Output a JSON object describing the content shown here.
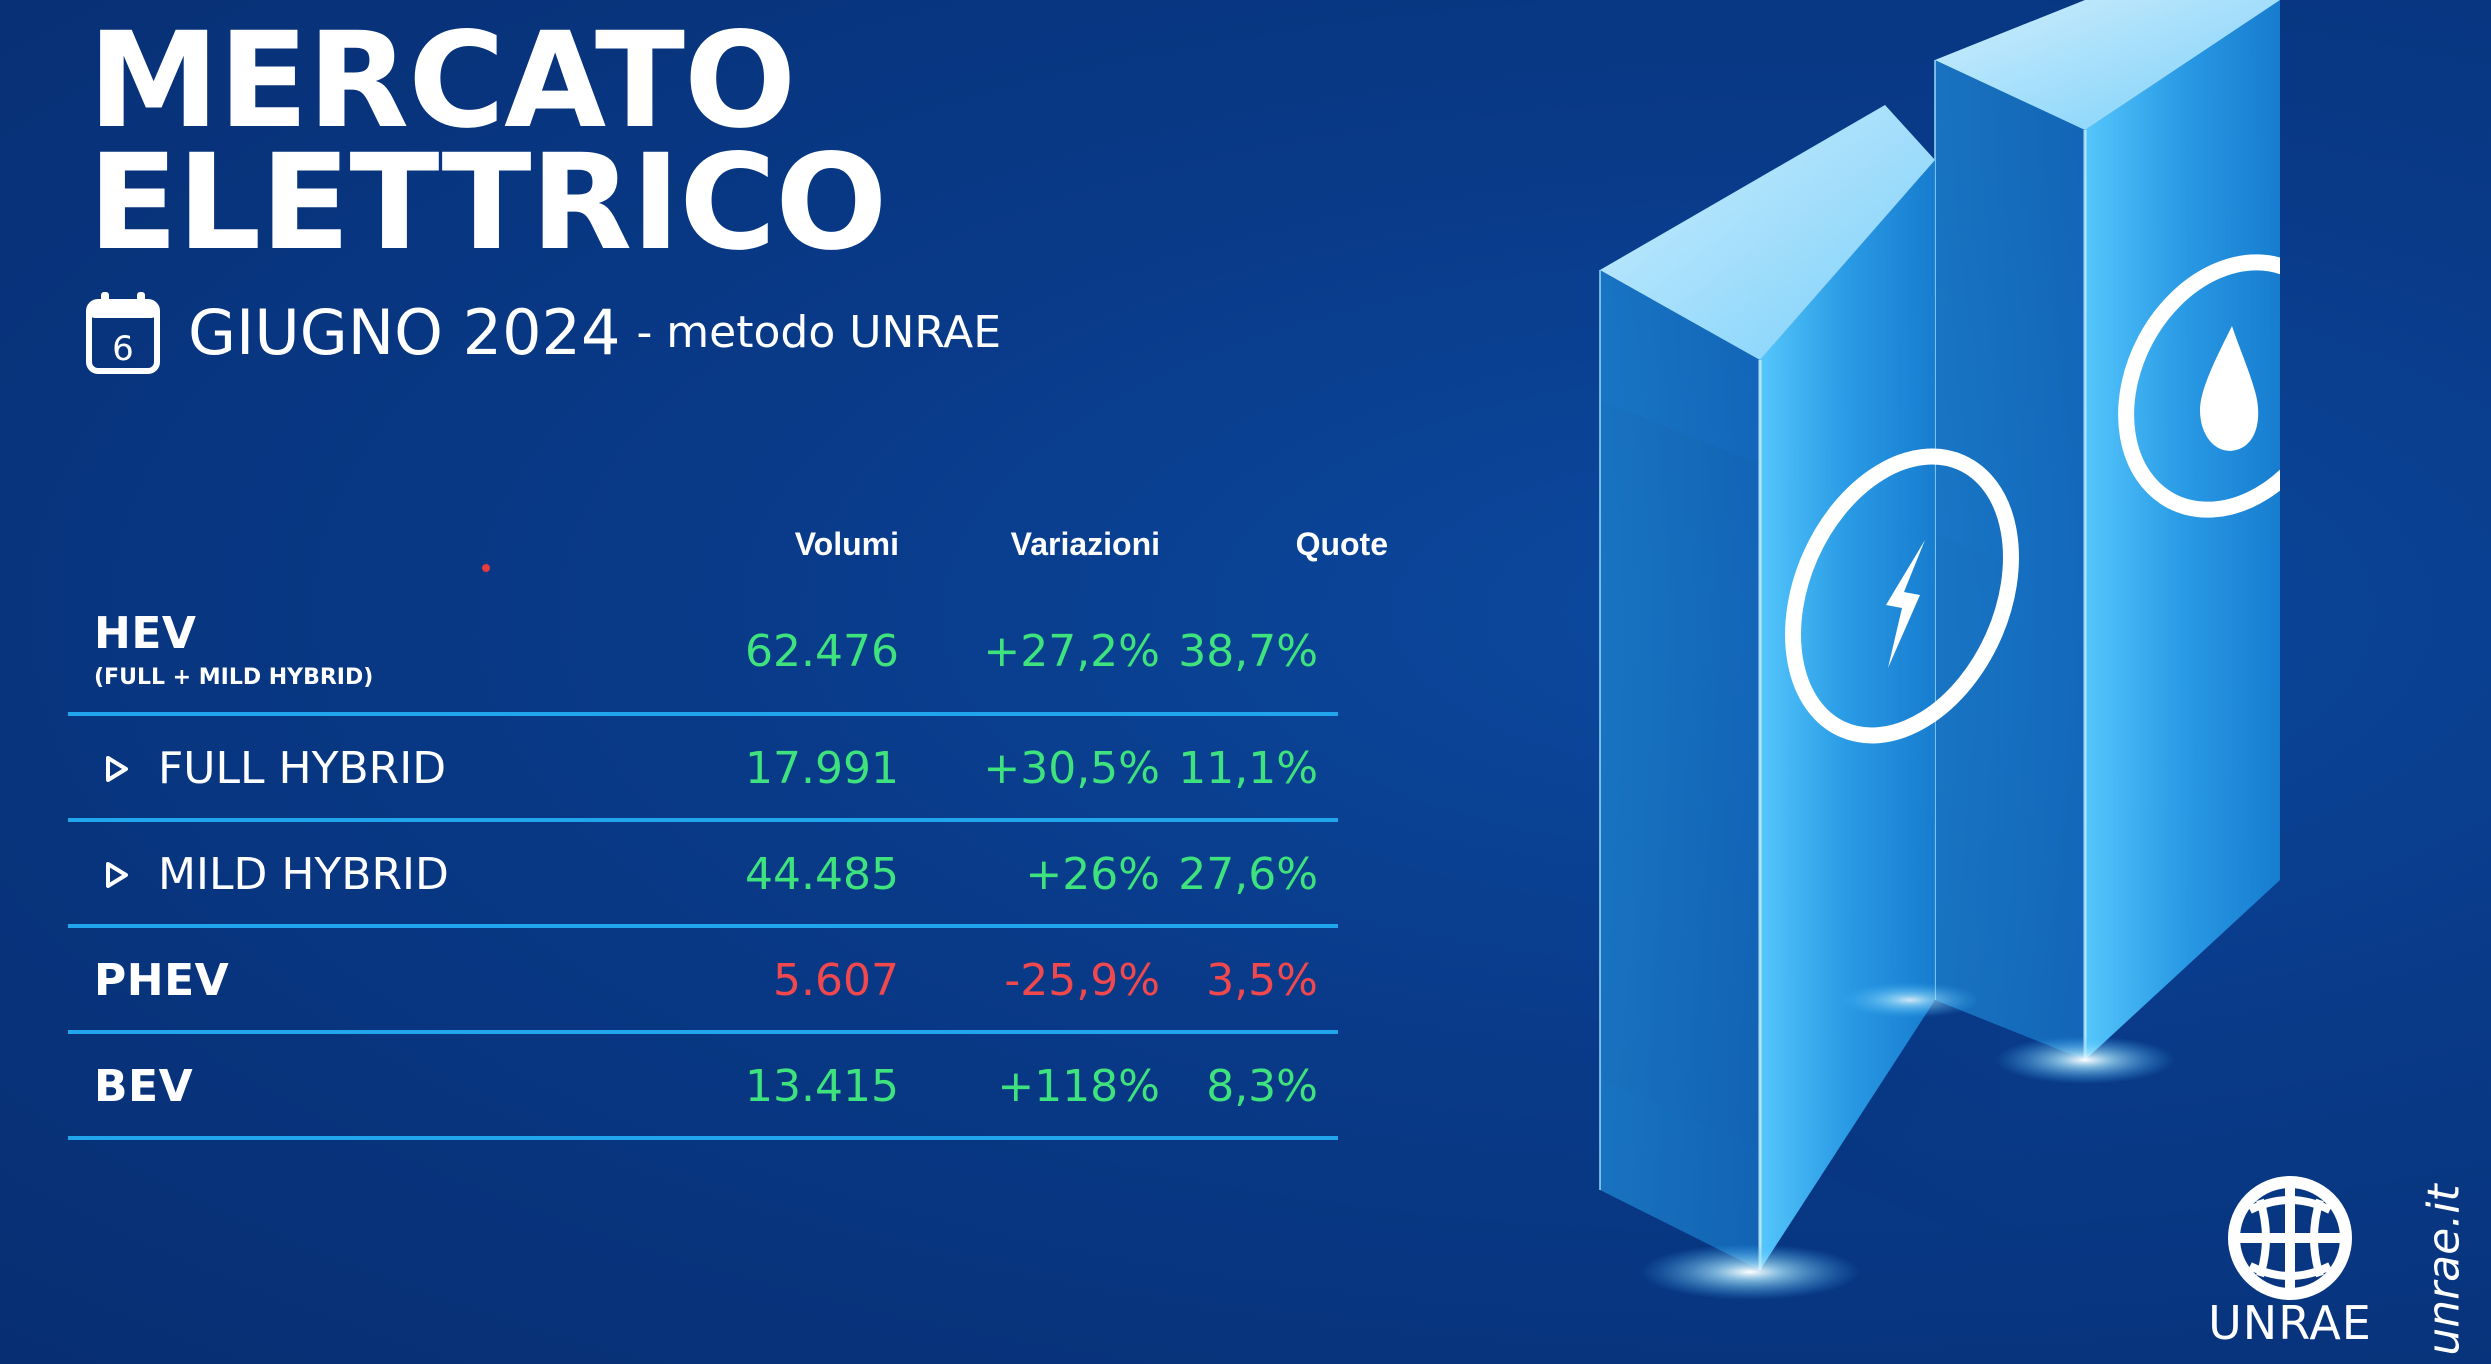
{
  "title": {
    "line1": "MERCATO",
    "line2": "ELETTRICO"
  },
  "subtitle": {
    "calendar_day": "6",
    "date": "GIUGNO 2024",
    "method": "- metodo UNRAE"
  },
  "table": {
    "headers": {
      "volumes": "Volumi",
      "variations": "Variazioni",
      "shares": "Quote"
    },
    "rows": [
      {
        "label": "HEV",
        "sublabel": "(FULL + MILD HYBRID)",
        "volume": "62.476",
        "variation": "+27,2%",
        "share": "38,7%",
        "status": "positive"
      },
      {
        "label": "FULL HYBRID",
        "volume": "17.991",
        "variation": "+30,5%",
        "share": "11,1%",
        "status": "positive",
        "indented": true
      },
      {
        "label": "MILD HYBRID",
        "volume": "44.485",
        "variation": "+26%",
        "share": "27,6%",
        "status": "positive",
        "indented": true
      },
      {
        "label": "PHEV",
        "volume": "5.607",
        "variation": "-25,9%",
        "share": "3,5%",
        "status": "negative"
      },
      {
        "label": "BEV",
        "volume": "13.415",
        "variation": "+118%",
        "share": "8,3%",
        "status": "positive"
      }
    ]
  },
  "illustration": {
    "left_column_icon": "lightning-bolt-icon",
    "right_column_icon": "fuel-drop-icon"
  },
  "brand": {
    "logo_text": "UNRAE",
    "website": "unrae.it"
  },
  "colors": {
    "background": "#093b8a",
    "positive": "#3fe37d",
    "negative": "#f0484c",
    "divider": "#21a6ee",
    "column_cyan": "#3fc3f7"
  }
}
